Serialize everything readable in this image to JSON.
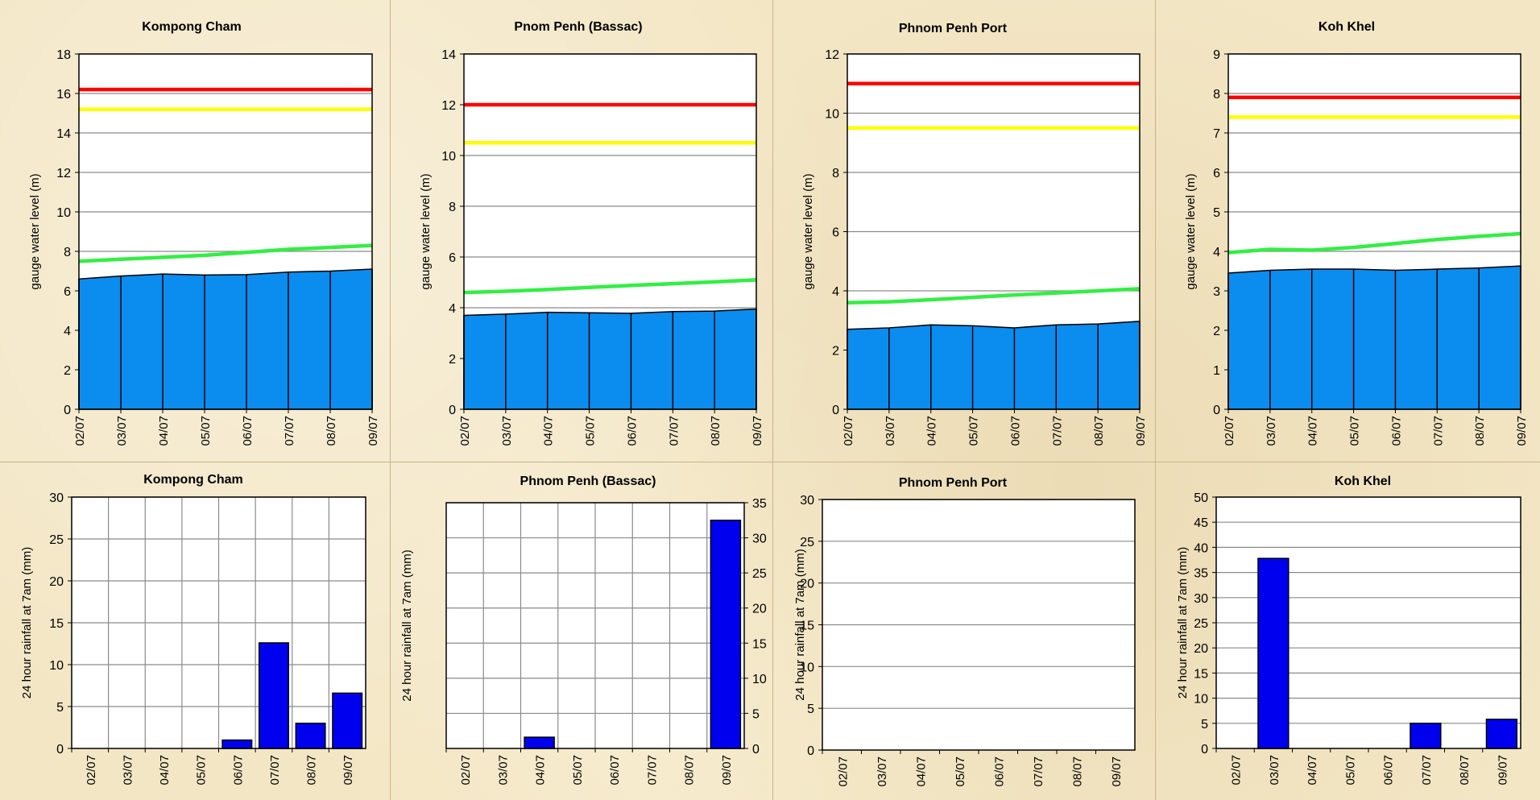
{
  "colors": {
    "fill": "#0b8cef",
    "bar": "#0000ee",
    "danger": "#ff0000",
    "warning": "#ffff00",
    "normal": "#33ee44"
  },
  "chart_data": [
    {
      "type": "area",
      "title": "Kompong Cham",
      "ylabel": "gauge  water level (m)",
      "categories": [
        "02/07",
        "03/07",
        "04/07",
        "05/07",
        "06/07",
        "07/07",
        "08/07",
        "09/07"
      ],
      "ylim": [
        0,
        18
      ],
      "yticks": [
        0,
        2,
        4,
        6,
        8,
        10,
        12,
        14,
        16,
        18
      ],
      "series": [
        {
          "role": "observed",
          "values": [
            6.6,
            6.75,
            6.85,
            6.8,
            6.82,
            6.95,
            7.0,
            7.1
          ]
        },
        {
          "role": "normal",
          "values": [
            7.5,
            7.6,
            7.7,
            7.8,
            7.95,
            8.1,
            8.2,
            8.3
          ]
        },
        {
          "role": "warning",
          "values": [
            15.2,
            15.2,
            15.2,
            15.2,
            15.2,
            15.2,
            15.2,
            15.2
          ]
        },
        {
          "role": "danger",
          "values": [
            16.2,
            16.2,
            16.2,
            16.2,
            16.2,
            16.2,
            16.2,
            16.2
          ]
        }
      ]
    },
    {
      "type": "area",
      "title": "Pnom Penh (Bassac)",
      "ylabel": "gauge  water level (m)",
      "categories": [
        "02/07",
        "03/07",
        "04/07",
        "05/07",
        "06/07",
        "07/07",
        "08/07",
        "09/07"
      ],
      "ylim": [
        0,
        14
      ],
      "yticks": [
        0,
        2,
        4,
        6,
        8,
        10,
        12,
        14
      ],
      "series": [
        {
          "role": "observed",
          "values": [
            3.7,
            3.75,
            3.82,
            3.8,
            3.78,
            3.85,
            3.87,
            3.95
          ]
        },
        {
          "role": "normal",
          "values": [
            4.6,
            4.65,
            4.72,
            4.8,
            4.88,
            4.95,
            5.02,
            5.1
          ]
        },
        {
          "role": "warning",
          "values": [
            10.5,
            10.5,
            10.5,
            10.5,
            10.5,
            10.5,
            10.5,
            10.5
          ]
        },
        {
          "role": "danger",
          "values": [
            12,
            12,
            12,
            12,
            12,
            12,
            12,
            12
          ]
        }
      ]
    },
    {
      "type": "area",
      "title": "Phnom Penh Port",
      "ylabel": "gauge  water level (m)",
      "categories": [
        "02/07",
        "03/07",
        "04/07",
        "05/07",
        "06/07",
        "07/07",
        "08/07",
        "09/07"
      ],
      "ylim": [
        0,
        12
      ],
      "yticks": [
        0,
        2,
        4,
        6,
        8,
        10,
        12
      ],
      "series": [
        {
          "role": "observed",
          "values": [
            2.7,
            2.75,
            2.85,
            2.82,
            2.75,
            2.85,
            2.88,
            2.97
          ]
        },
        {
          "role": "normal",
          "values": [
            3.6,
            3.63,
            3.7,
            3.78,
            3.86,
            3.93,
            4.0,
            4.07
          ]
        },
        {
          "role": "warning",
          "values": [
            9.5,
            9.5,
            9.5,
            9.5,
            9.5,
            9.5,
            9.5,
            9.5
          ]
        },
        {
          "role": "danger",
          "values": [
            11,
            11,
            11,
            11,
            11,
            11,
            11,
            11
          ]
        }
      ]
    },
    {
      "type": "area",
      "title": "Koh Khel",
      "ylabel": "gauge  water level (m)",
      "categories": [
        "02/07",
        "03/07",
        "04/07",
        "05/07",
        "06/07",
        "07/07",
        "08/07",
        "09/07"
      ],
      "ylim": [
        0,
        9
      ],
      "yticks": [
        0,
        1,
        2,
        3,
        4,
        5,
        6,
        7,
        8,
        9
      ],
      "series": [
        {
          "role": "observed",
          "values": [
            3.45,
            3.52,
            3.55,
            3.55,
            3.52,
            3.55,
            3.58,
            3.63
          ]
        },
        {
          "role": "normal",
          "values": [
            3.97,
            4.05,
            4.03,
            4.1,
            4.2,
            4.3,
            4.38,
            4.45
          ]
        },
        {
          "role": "warning",
          "values": [
            7.4,
            7.4,
            7.4,
            7.4,
            7.4,
            7.4,
            7.4,
            7.4
          ]
        },
        {
          "role": "danger",
          "values": [
            7.9,
            7.9,
            7.9,
            7.9,
            7.9,
            7.9,
            7.9,
            7.9
          ]
        }
      ]
    },
    {
      "type": "bar",
      "title": "Kompong Cham",
      "ylabel": "24 hour rainfall at 7am (mm)",
      "categories": [
        "02/07",
        "03/07",
        "04/07",
        "05/07",
        "06/07",
        "07/07",
        "08/07",
        "09/07"
      ],
      "values": [
        0,
        0,
        0,
        0,
        1.0,
        12.6,
        3.0,
        6.6
      ],
      "ylim": [
        0,
        30
      ],
      "yticks": [
        0,
        5,
        10,
        15,
        20,
        25,
        30
      ],
      "yaxis_side": "left",
      "vgrid": true
    },
    {
      "type": "bar",
      "title": "Phnom Penh (Bassac)",
      "ylabel": "24 hour rainfall at 7am (mm)",
      "categories": [
        "02/07",
        "03/07",
        "04/07",
        "05/07",
        "06/07",
        "07/07",
        "08/07",
        "09/07"
      ],
      "values": [
        0,
        0,
        1.6,
        0,
        0,
        0,
        0,
        32.5
      ],
      "ylim": [
        0,
        35
      ],
      "yticks": [
        0,
        5,
        10,
        15,
        20,
        25,
        30,
        35
      ],
      "yaxis_side": "right",
      "vgrid": true
    },
    {
      "type": "bar",
      "title": "Phnom Penh Port",
      "ylabel": "24 hour rainfall at 7am (mm)",
      "categories": [
        "02/07",
        "03/07",
        "04/07",
        "05/07",
        "06/07",
        "07/07",
        "08/07",
        "09/07"
      ],
      "values": [
        0,
        0,
        0,
        0,
        0,
        0,
        0,
        0
      ],
      "ylim": [
        0,
        30
      ],
      "yticks": [
        0,
        5,
        10,
        15,
        20,
        25,
        30
      ],
      "yaxis_side": "left",
      "vgrid": false
    },
    {
      "type": "bar",
      "title": "Koh Khel",
      "ylabel": "24 hour rainfall at 7am (mm)",
      "categories": [
        "02/07",
        "03/07",
        "04/07",
        "05/07",
        "06/07",
        "07/07",
        "08/07",
        "09/07"
      ],
      "values": [
        0,
        37.8,
        0,
        0,
        0,
        5.0,
        0,
        5.8
      ],
      "ylim": [
        0,
        50
      ],
      "yticks": [
        0,
        5,
        10,
        15,
        20,
        25,
        30,
        35,
        40,
        45,
        50
      ],
      "yaxis_side": "left",
      "vgrid": false
    }
  ]
}
